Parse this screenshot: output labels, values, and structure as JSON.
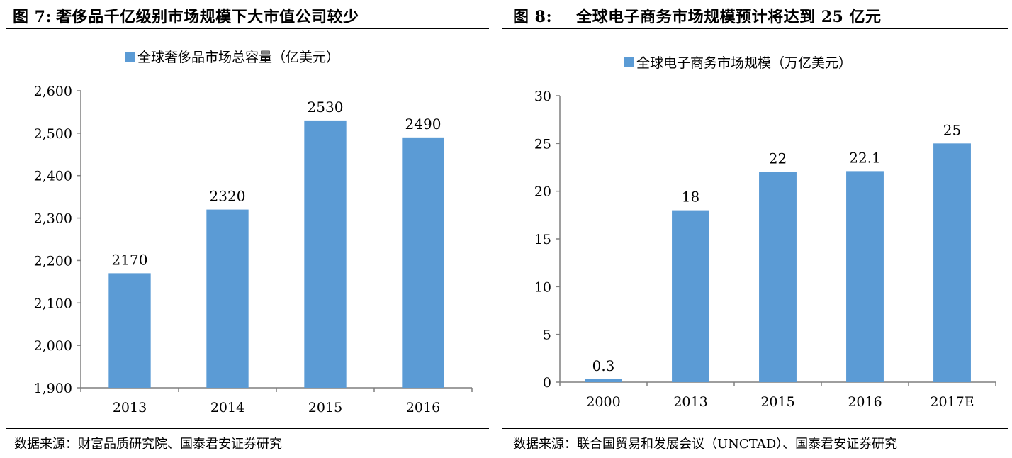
{
  "left": {
    "figure_label": "图 7:",
    "figure_title": "奢侈品千亿级别市场规模下大市值公司较少",
    "legend_label": "全球奢侈品市场总容量（亿美元）",
    "source": "数据来源：财富品质研究院、国泰君安证券研究"
  },
  "right": {
    "figure_label": "图 8:",
    "figure_title": "全球电子商务市场规模预计将达到 25 亿元",
    "legend_label": "全球电子商务市场规模（万亿美元）",
    "source": "数据来源：联合国贸易和发展会议（UNCTAD）、国泰君安证券研究"
  },
  "colors": {
    "bar": "#5b9bd5",
    "axis": "#7f7f7f"
  },
  "chart_data": [
    {
      "type": "bar",
      "title": "奢侈品千亿级别市场规模下大市值公司较少",
      "categories": [
        "2013",
        "2014",
        "2015",
        "2016"
      ],
      "series": [
        {
          "name": "全球奢侈品市场总容量（亿美元）",
          "values": [
            2170,
            2320,
            2530,
            2490
          ]
        }
      ],
      "data_labels": [
        "2170",
        "2320",
        "2530",
        "2490"
      ],
      "ylim": [
        1900,
        2600
      ],
      "yticks": [
        1900,
        2000,
        2100,
        2200,
        2300,
        2400,
        2500,
        2600
      ],
      "ytick_labels": [
        "1,900",
        "2,000",
        "2,100",
        "2,200",
        "2,300",
        "2,400",
        "2,500",
        "2,600"
      ],
      "grid": false,
      "legend": "top-center",
      "xlabel": "",
      "ylabel": ""
    },
    {
      "type": "bar",
      "title": "全球电子商务市场规模预计将达到 25 亿元",
      "categories": [
        "2000",
        "2013",
        "2015",
        "2016",
        "2017E"
      ],
      "series": [
        {
          "name": "全球电子商务市场规模（万亿美元）",
          "values": [
            0.3,
            18,
            22,
            22.1,
            25
          ]
        }
      ],
      "data_labels": [
        "0.3",
        "18",
        "22",
        "22.1",
        "25"
      ],
      "ylim": [
        0,
        30
      ],
      "yticks": [
        0,
        5,
        10,
        15,
        20,
        25,
        30
      ],
      "ytick_labels": [
        "0",
        "5",
        "10",
        "15",
        "20",
        "25",
        "30"
      ],
      "grid": false,
      "legend": "top-center",
      "xlabel": "",
      "ylabel": ""
    }
  ]
}
